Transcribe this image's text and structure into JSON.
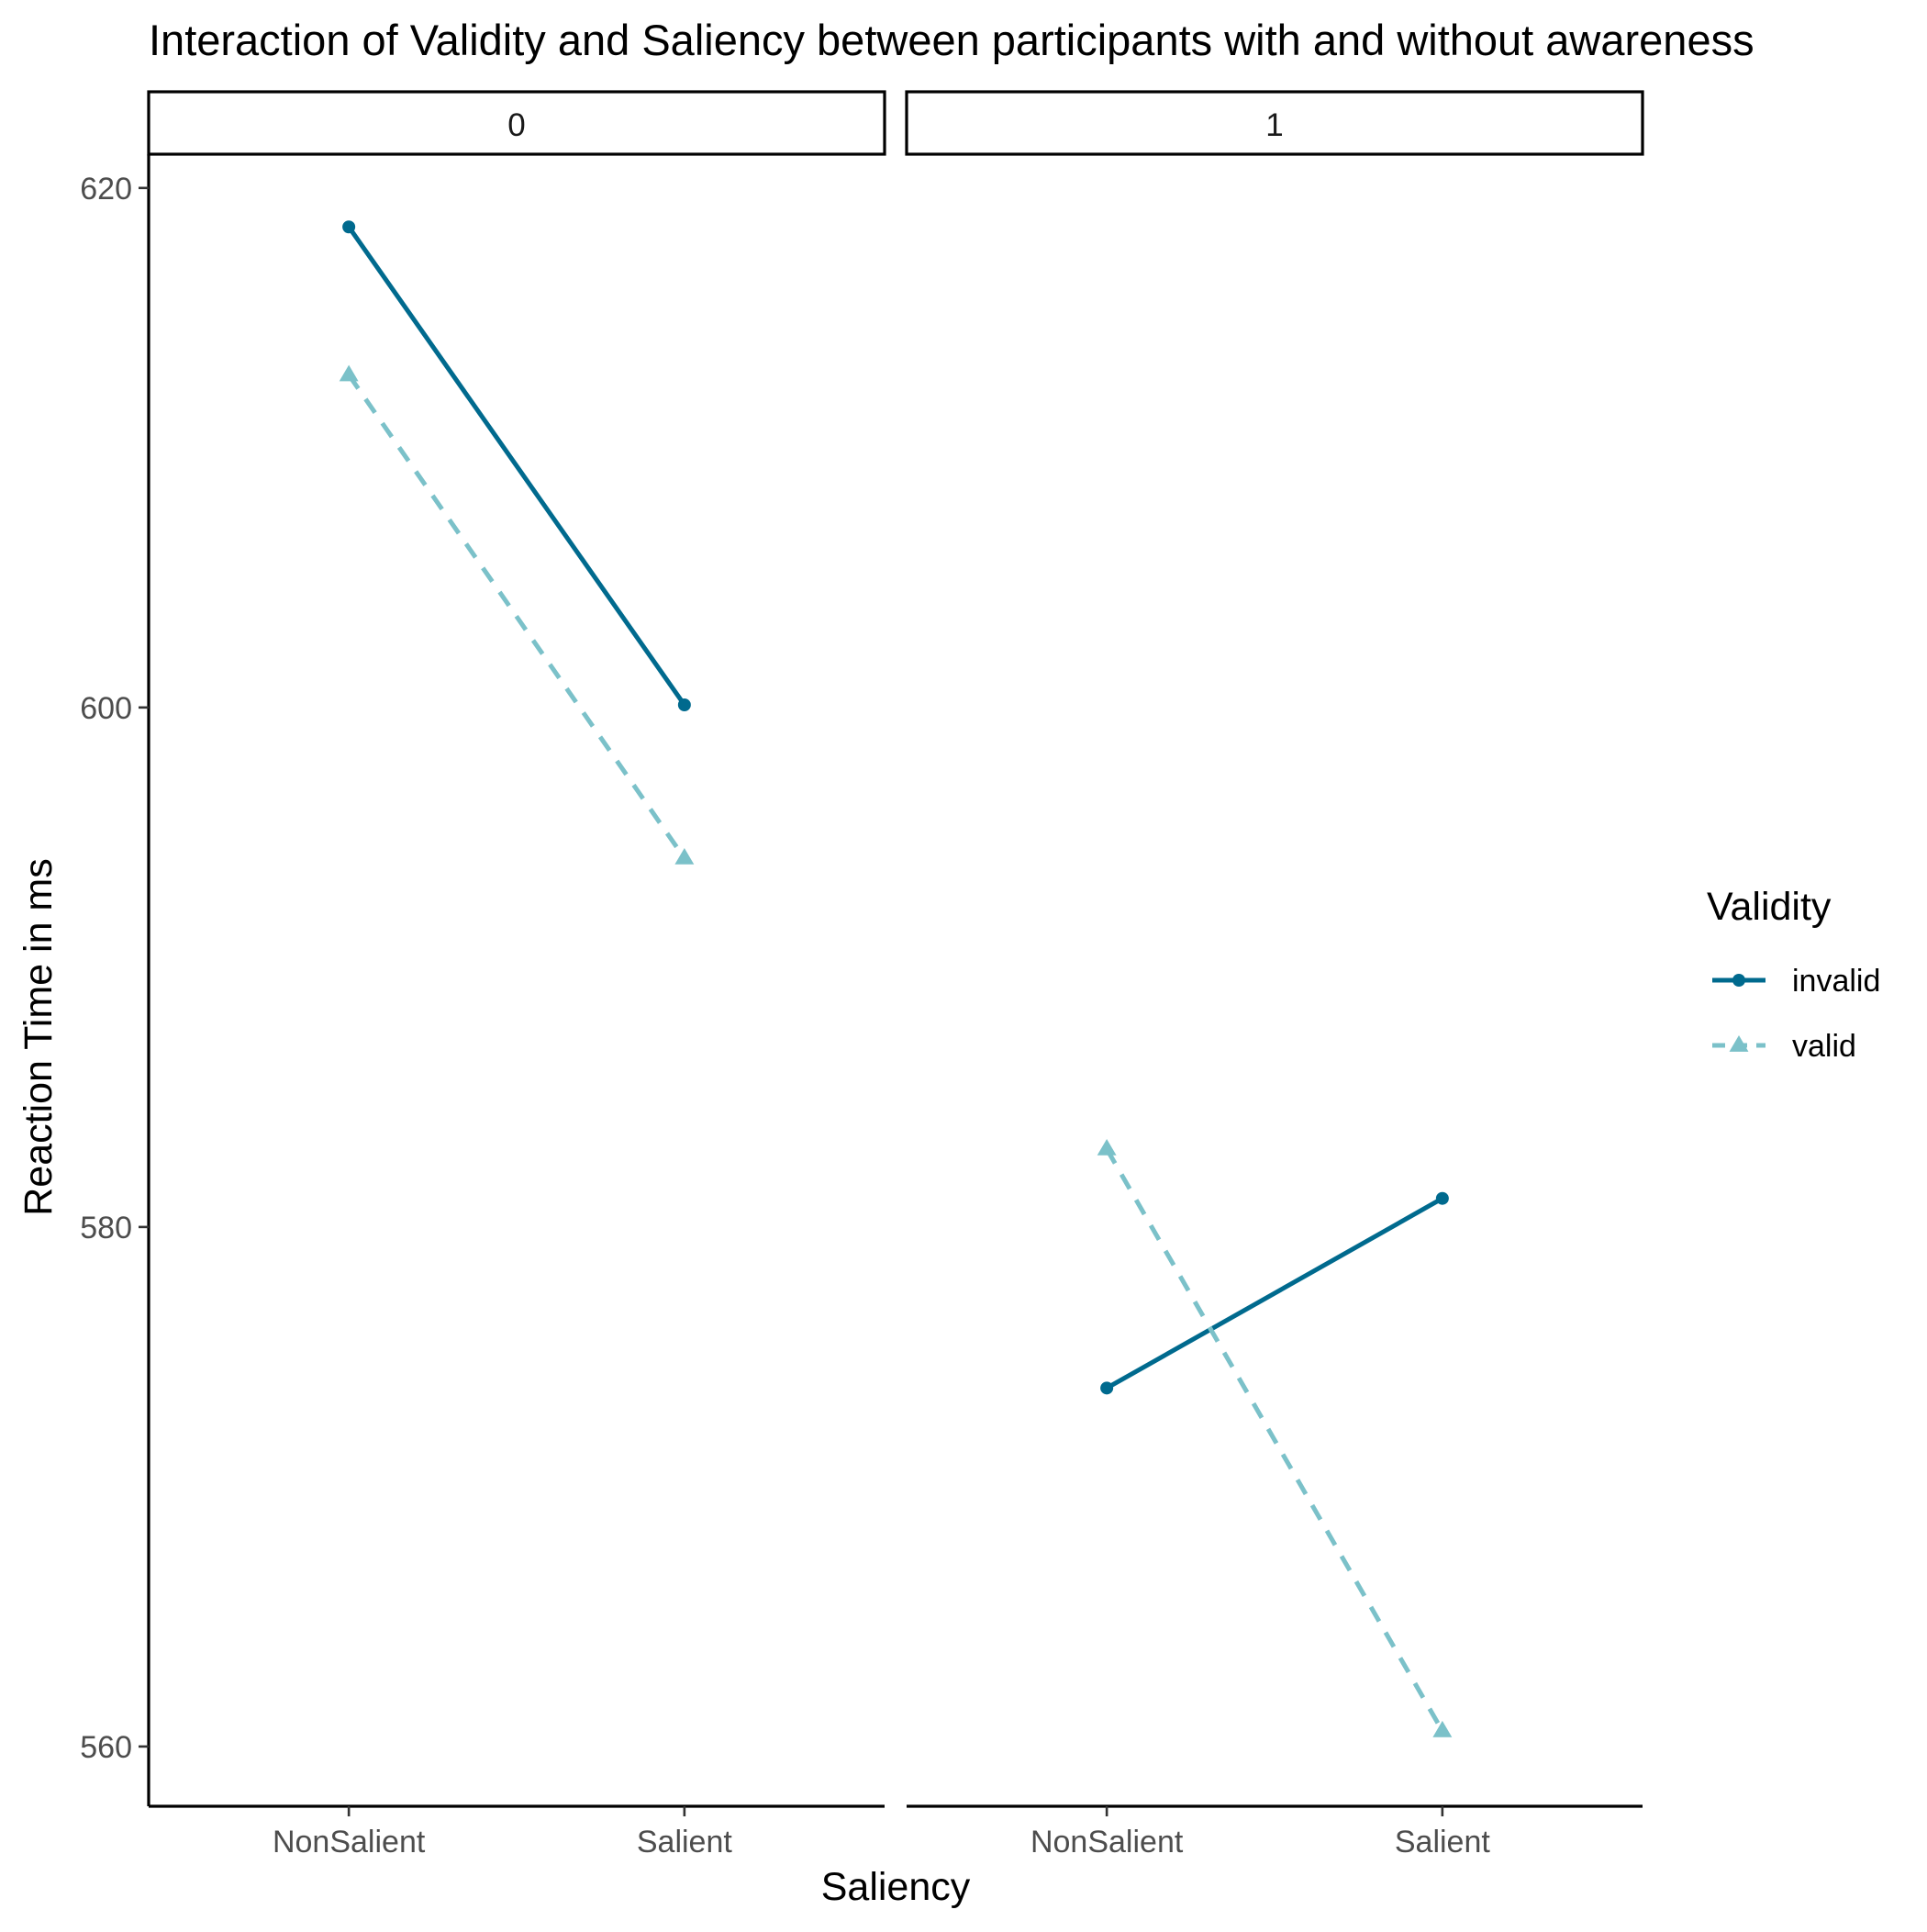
{
  "chart_data": {
    "type": "line",
    "title": "Interaction of Validity and Saliency between participants with and without awareness",
    "xlabel": "Saliency",
    "ylabel": "Reaction Time in ms",
    "categories": [
      "NonSalient",
      "Salient"
    ],
    "ylim": [
      557.7,
      621.3
    ],
    "yticks": [
      560,
      580,
      600,
      620
    ],
    "yticklabels": [
      "560",
      "580",
      "600",
      "620"
    ],
    "grid": false,
    "legend": {
      "title": "Validity",
      "position": "right",
      "entries": [
        "invalid",
        "valid"
      ]
    },
    "panels": [
      {
        "label": "0",
        "series": [
          {
            "name": "invalid",
            "values": [
              618.5,
              600.1
            ]
          },
          {
            "name": "valid",
            "values": [
              612.8,
              594.2
            ]
          }
        ]
      },
      {
        "label": "1",
        "series": [
          {
            "name": "invalid",
            "values": [
              573.8,
              581.1
            ]
          },
          {
            "name": "valid",
            "values": [
              583.0,
              560.6
            ]
          }
        ]
      }
    ],
    "series_styles": [
      {
        "name": "invalid",
        "color": "#006a8e",
        "dashed": false,
        "marker": "circle"
      },
      {
        "name": "valid",
        "color": "#7bc1c9",
        "dashed": true,
        "marker": "triangle"
      }
    ]
  }
}
